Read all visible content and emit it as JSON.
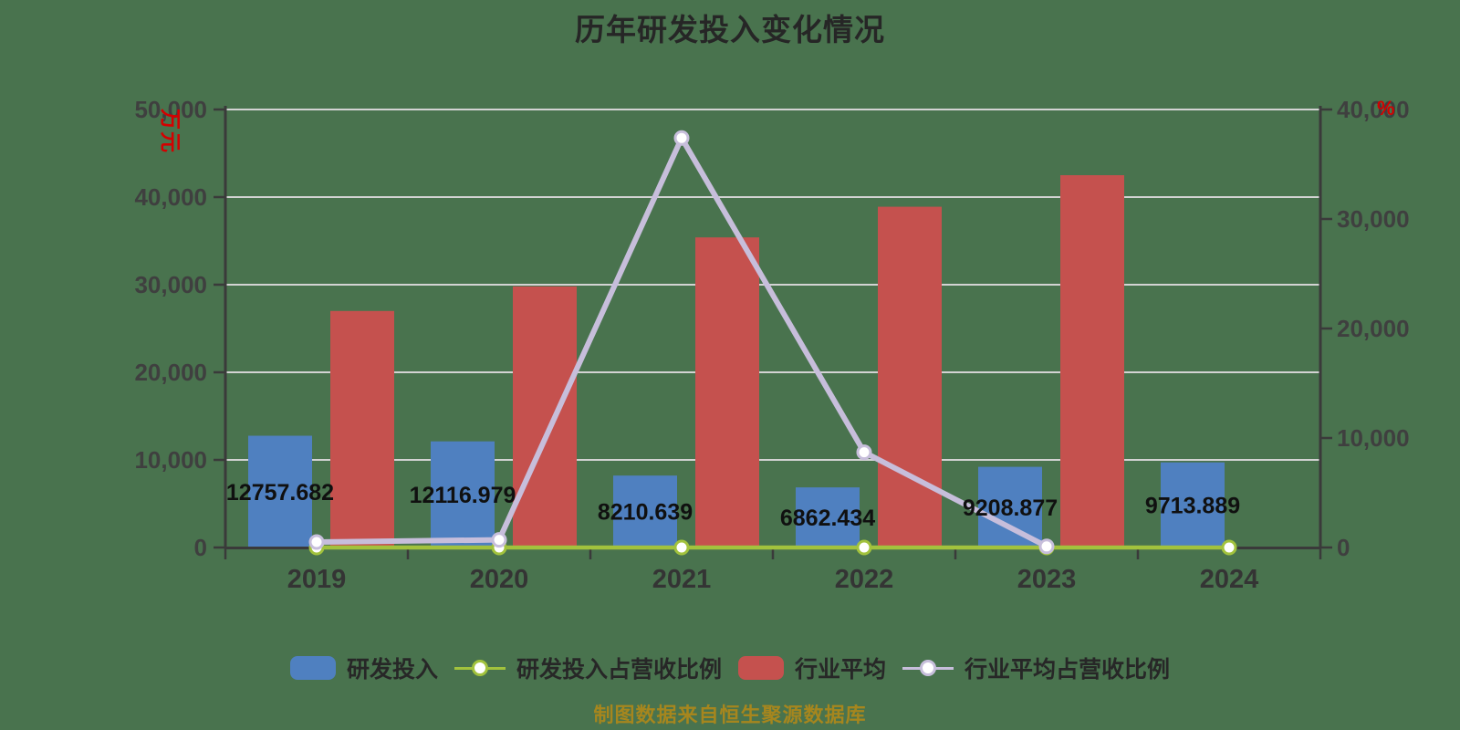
{
  "title": "历年研发投入变化情况",
  "source_note": "制图数据来自恒生聚源数据库",
  "left_axis": {
    "unit": "万元",
    "unit_color": "#d40000",
    "max": 50000,
    "min": 0,
    "ticks": [
      "0",
      "10,000",
      "20,000",
      "30,000",
      "40,000",
      "50,000"
    ]
  },
  "right_axis": {
    "unit": "%",
    "unit_color": "#d40000",
    "max": 40000,
    "min": 0,
    "ticks": [
      "0",
      "10,000",
      "20,000",
      "30,000",
      "40,000"
    ]
  },
  "chart_data": {
    "type": "bar+line",
    "title": "历年研发投入变化情况",
    "categories": [
      "2019",
      "2020",
      "2021",
      "2022",
      "2023",
      "2024"
    ],
    "grid": "horizontal",
    "legend_position": "bottom",
    "series": [
      {
        "name": "研发投入",
        "type": "bar",
        "axis": "left",
        "color": "#4f80c0",
        "values": [
          12757.682,
          12116.979,
          8210.639,
          6862.434,
          9208.877,
          9713.889
        ],
        "data_labels": [
          "12757.682",
          "12116.979",
          "8210.639",
          "6862.434",
          "9208.877",
          "9713.889"
        ]
      },
      {
        "name": "行业平均",
        "type": "bar",
        "axis": "left",
        "color": "#c5514e",
        "values": [
          27000,
          29800,
          35400,
          38900,
          42500,
          null
        ]
      },
      {
        "name": "研发投入占营收比例",
        "type": "line",
        "axis": "right",
        "color": "#a2c23d",
        "marker_fill": "#ffffff",
        "values": [
          0,
          0,
          0,
          0,
          0,
          0
        ]
      },
      {
        "name": "行业平均占营收比例",
        "type": "line",
        "axis": "right",
        "color": "#c7bedb",
        "marker_fill": "#ffffff",
        "values": [
          500,
          700,
          37400,
          8700,
          100,
          null
        ]
      }
    ]
  },
  "legend": [
    {
      "label": "研发投入",
      "swatch": "bar",
      "color": "#4f80c0"
    },
    {
      "label": "研发投入占营收比例",
      "swatch": "line-marker",
      "color": "#a2c23d"
    },
    {
      "label": "行业平均",
      "swatch": "bar",
      "color": "#c5514e"
    },
    {
      "label": "行业平均占营收比例",
      "swatch": "line-marker",
      "color": "#c7bedb"
    }
  ]
}
